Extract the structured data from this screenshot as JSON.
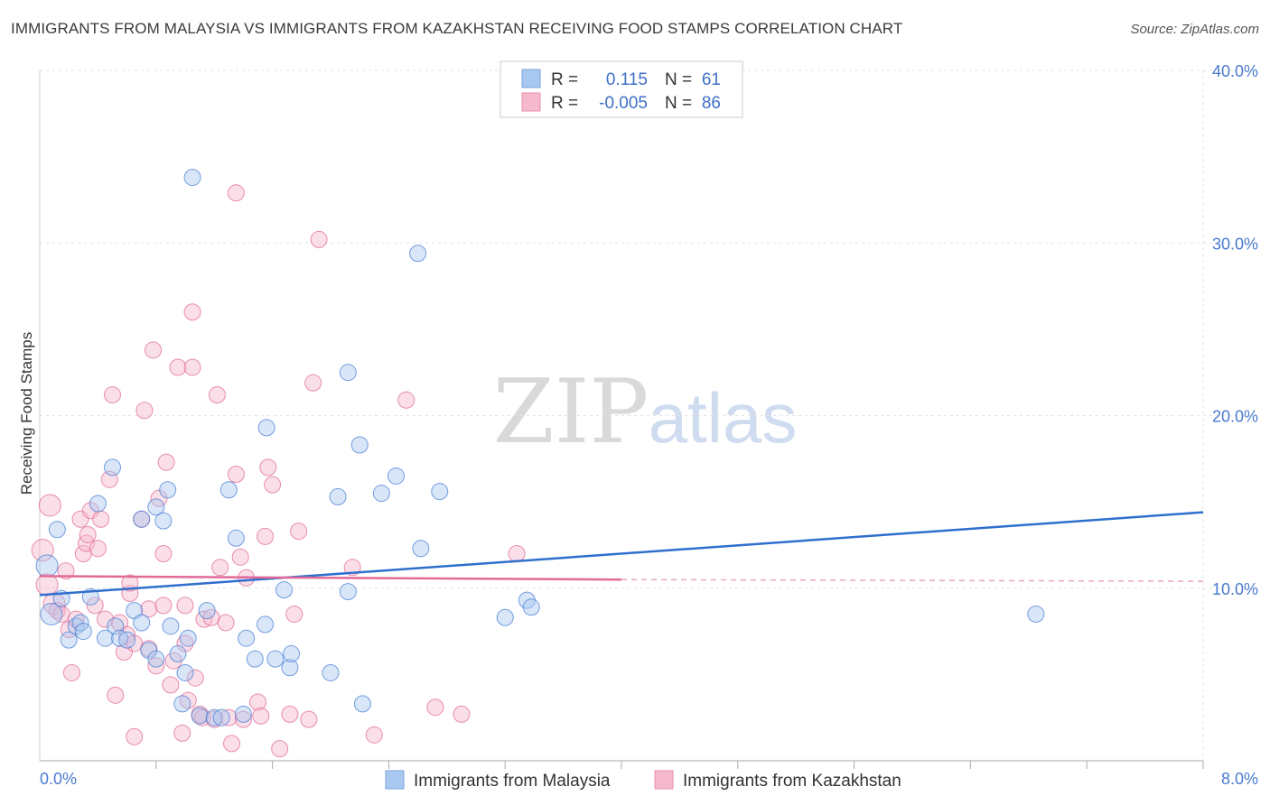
{
  "title": "IMMIGRANTS FROM MALAYSIA VS IMMIGRANTS FROM KAZAKHSTAN RECEIVING FOOD STAMPS CORRELATION CHART",
  "source": "Source: ZipAtlas.com",
  "watermark": {
    "zip": "ZIP",
    "atlas": "atlas"
  },
  "legend_box": {
    "rows": [
      {
        "r_label": "R =",
        "r_value": "0.115",
        "n_label": "N =",
        "n_value": "61",
        "color": "#a9c8f0"
      },
      {
        "r_label": "R =",
        "r_value": "-0.005",
        "n_label": "N =",
        "n_value": "86",
        "color": "#f6b8cc"
      }
    ]
  },
  "bottom_legend": [
    "Immigrants from Malaysia",
    "Immigrants from Kazakhstan"
  ],
  "chart_data": {
    "type": "scatter",
    "ylabel": "Receiving Food Stamps",
    "xlim": [
      0,
      8
    ],
    "ylim": [
      0,
      40
    ],
    "x_tick_labels": {
      "min": "0.0%",
      "max": "8.0%"
    },
    "y_ticks": [
      {
        "value": 10,
        "label": "10.0%"
      },
      {
        "value": 20,
        "label": "20.0%"
      },
      {
        "value": 30,
        "label": "30.0%"
      },
      {
        "value": 40,
        "label": "40.0%"
      }
    ],
    "colors": {
      "malaysia": "#4a7fd6",
      "kazakhstan": "#e06a98",
      "malaysia_fill": "#a9c8f0",
      "kazakhstan_fill": "#f6b8cc"
    },
    "series": [
      {
        "name": "Immigrants from Malaysia",
        "trend": {
          "x0": 0,
          "y0": 9.6,
          "x1": 8,
          "y1": 14.4
        },
        "points": [
          [
            0.05,
            11.3
          ],
          [
            0.08,
            8.5
          ],
          [
            0.12,
            13.4
          ],
          [
            0.15,
            9.4
          ],
          [
            0.2,
            7.0
          ],
          [
            0.25,
            7.8
          ],
          [
            0.28,
            8.0
          ],
          [
            0.3,
            7.5
          ],
          [
            0.35,
            9.5
          ],
          [
            0.4,
            14.9
          ],
          [
            0.45,
            7.1
          ],
          [
            0.5,
            17.0
          ],
          [
            0.52,
            7.8
          ],
          [
            0.55,
            7.1
          ],
          [
            0.6,
            7.0
          ],
          [
            0.65,
            8.7
          ],
          [
            0.7,
            8.0
          ],
          [
            0.7,
            14.0
          ],
          [
            0.75,
            6.4
          ],
          [
            0.8,
            5.9
          ],
          [
            0.8,
            14.7
          ],
          [
            0.85,
            13.9
          ],
          [
            0.88,
            15.7
          ],
          [
            0.9,
            7.8
          ],
          [
            0.95,
            6.2
          ],
          [
            0.98,
            3.3
          ],
          [
            1.0,
            5.1
          ],
          [
            1.02,
            7.1
          ],
          [
            1.05,
            33.8
          ],
          [
            1.1,
            2.6
          ],
          [
            1.15,
            8.7
          ],
          [
            1.2,
            2.5
          ],
          [
            1.25,
            2.5
          ],
          [
            1.3,
            15.7
          ],
          [
            1.35,
            12.9
          ],
          [
            1.4,
            2.7
          ],
          [
            1.42,
            7.1
          ],
          [
            1.48,
            5.9
          ],
          [
            1.55,
            7.9
          ],
          [
            1.56,
            19.3
          ],
          [
            1.62,
            5.9
          ],
          [
            1.68,
            9.9
          ],
          [
            1.72,
            5.4
          ],
          [
            1.73,
            6.2
          ],
          [
            2.0,
            5.1
          ],
          [
            2.05,
            15.3
          ],
          [
            2.12,
            22.5
          ],
          [
            2.12,
            9.8
          ],
          [
            2.2,
            18.3
          ],
          [
            2.22,
            3.3
          ],
          [
            2.35,
            15.5
          ],
          [
            2.45,
            16.5
          ],
          [
            2.6,
            29.4
          ],
          [
            2.62,
            12.3
          ],
          [
            2.75,
            15.6
          ],
          [
            3.2,
            8.3
          ],
          [
            3.35,
            9.3
          ],
          [
            3.38,
            8.9
          ],
          [
            6.85,
            8.5
          ]
        ]
      },
      {
        "name": "Immigrants from Kazakhstan",
        "trend": {
          "x0": 0,
          "y0": 10.7,
          "x1": 4.0,
          "y1": 10.5,
          "dash_x1": 8.0,
          "dash_y1": 10.4
        },
        "points": [
          [
            0.02,
            12.2
          ],
          [
            0.05,
            10.2
          ],
          [
            0.07,
            14.8
          ],
          [
            0.1,
            9.1
          ],
          [
            0.12,
            8.7
          ],
          [
            0.15,
            8.5
          ],
          [
            0.18,
            11.0
          ],
          [
            0.2,
            7.6
          ],
          [
            0.22,
            5.1
          ],
          [
            0.25,
            8.2
          ],
          [
            0.28,
            14.0
          ],
          [
            0.3,
            12.0
          ],
          [
            0.32,
            12.6
          ],
          [
            0.33,
            13.1
          ],
          [
            0.35,
            14.5
          ],
          [
            0.38,
            9.0
          ],
          [
            0.4,
            12.3
          ],
          [
            0.42,
            14.0
          ],
          [
            0.45,
            8.2
          ],
          [
            0.48,
            16.3
          ],
          [
            0.5,
            21.2
          ],
          [
            0.52,
            3.8
          ],
          [
            0.55,
            8.0
          ],
          [
            0.58,
            6.3
          ],
          [
            0.6,
            7.3
          ],
          [
            0.62,
            9.7
          ],
          [
            0.62,
            10.3
          ],
          [
            0.65,
            6.8
          ],
          [
            0.65,
            1.4
          ],
          [
            0.7,
            14.0
          ],
          [
            0.72,
            20.3
          ],
          [
            0.75,
            6.5
          ],
          [
            0.75,
            8.8
          ],
          [
            0.78,
            23.8
          ],
          [
            0.8,
            5.5
          ],
          [
            0.82,
            15.2
          ],
          [
            0.85,
            9.0
          ],
          [
            0.85,
            12.0
          ],
          [
            0.87,
            17.3
          ],
          [
            0.9,
            4.4
          ],
          [
            0.92,
            5.8
          ],
          [
            0.95,
            22.8
          ],
          [
            0.98,
            1.6
          ],
          [
            1.0,
            6.8
          ],
          [
            1.0,
            9.0
          ],
          [
            1.02,
            3.5
          ],
          [
            1.05,
            26.0
          ],
          [
            1.05,
            22.8
          ],
          [
            1.07,
            4.8
          ],
          [
            1.1,
            2.7
          ],
          [
            1.12,
            2.5
          ],
          [
            1.13,
            8.2
          ],
          [
            1.18,
            8.3
          ],
          [
            1.2,
            2.4
          ],
          [
            1.22,
            21.2
          ],
          [
            1.24,
            11.2
          ],
          [
            1.28,
            8.0
          ],
          [
            1.3,
            2.5
          ],
          [
            1.32,
            1.0
          ],
          [
            1.35,
            16.6
          ],
          [
            1.35,
            32.9
          ],
          [
            1.38,
            11.8
          ],
          [
            1.4,
            2.4
          ],
          [
            1.42,
            10.6
          ],
          [
            1.5,
            3.4
          ],
          [
            1.52,
            2.6
          ],
          [
            1.55,
            13.0
          ],
          [
            1.57,
            17.0
          ],
          [
            1.6,
            16.0
          ],
          [
            1.65,
            0.7
          ],
          [
            1.72,
            2.7
          ],
          [
            1.75,
            8.5
          ],
          [
            1.78,
            13.3
          ],
          [
            1.85,
            2.4
          ],
          [
            1.88,
            21.9
          ],
          [
            1.92,
            30.2
          ],
          [
            2.15,
            11.2
          ],
          [
            2.3,
            1.5
          ],
          [
            2.52,
            20.9
          ],
          [
            2.72,
            3.1
          ],
          [
            2.9,
            2.7
          ],
          [
            3.28,
            12.0
          ]
        ]
      }
    ]
  }
}
